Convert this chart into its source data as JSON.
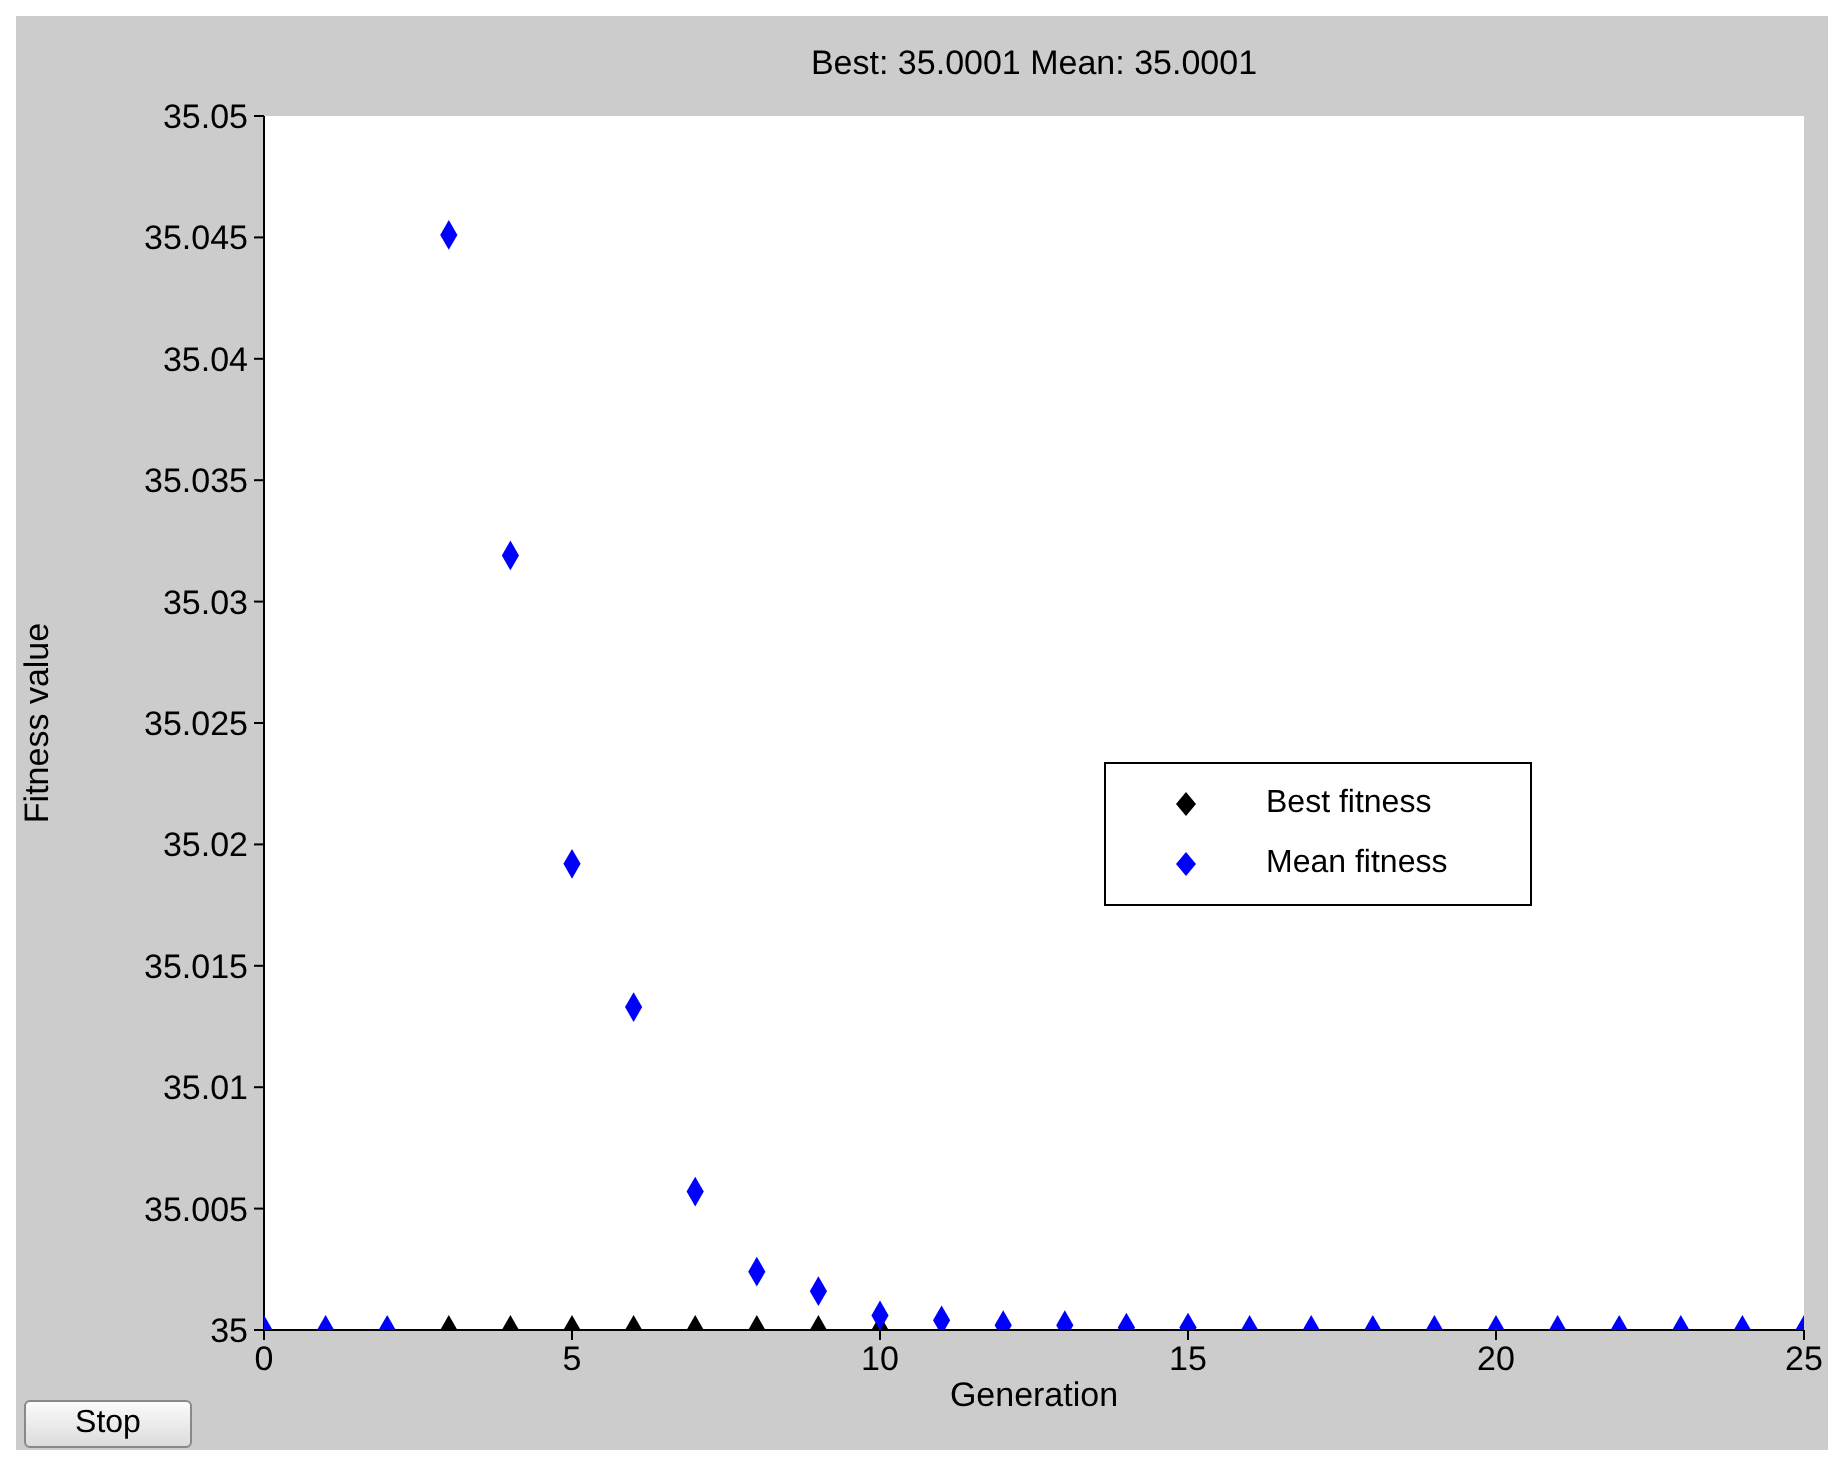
{
  "chart_data": {
    "type": "scatter",
    "title": "Best: 35.0001 Mean: 35.0001",
    "xlabel": "Generation",
    "ylabel": "Fitness value",
    "x": [
      0,
      1,
      2,
      3,
      4,
      5,
      6,
      7,
      8,
      9,
      10,
      11,
      12,
      13,
      14,
      15,
      16,
      17,
      18,
      19,
      20,
      21,
      22,
      23,
      24,
      25
    ],
    "series": [
      {
        "name": "Best fitness",
        "color": "#000000",
        "values": [
          null,
          null,
          null,
          35,
          35,
          35,
          35,
          35,
          35,
          35,
          35,
          null,
          null,
          null,
          null,
          null,
          null,
          null,
          null,
          null,
          null,
          null,
          null,
          null,
          null,
          null
        ]
      },
      {
        "name": "Mean fitness",
        "color": "#0000ff",
        "values": [
          35,
          35,
          35,
          35.0451,
          35.0319,
          35.0192,
          35.0133,
          35.0057,
          35.0024,
          35.0016,
          35.0006,
          35.0004,
          35.0002,
          35.0002,
          35.0001,
          35.0001,
          35,
          35,
          35,
          35,
          35,
          35,
          35,
          35,
          35,
          35
        ]
      }
    ],
    "xlim": [
      0,
      25
    ],
    "xticks": [
      0,
      5,
      10,
      15,
      20,
      25
    ],
    "ylim": [
      35,
      35.05
    ],
    "yticks": [
      35,
      35.005,
      35.01,
      35.015,
      35.02,
      35.025,
      35.03,
      35.035,
      35.04,
      35.045,
      35.05
    ],
    "marker": "diamond",
    "grid": false,
    "legend": "right",
    "annotations": [
      "Stop"
    ]
  }
}
